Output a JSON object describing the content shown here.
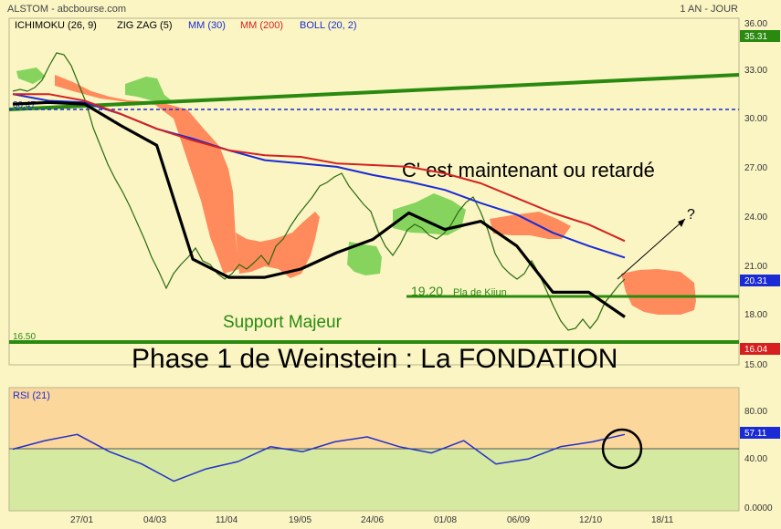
{
  "header": {
    "left": "ALSTOM - abcbourse.com",
    "right": "1 AN - JOUR"
  },
  "legend": [
    {
      "label": "ICHIMOKU (26, 9)",
      "color": "#000000"
    },
    {
      "label": "ZIG ZAG (5)",
      "color": "#000000"
    },
    {
      "label": "MM (30)",
      "color": "#1a2bd6"
    },
    {
      "label": "MM (200)",
      "color": "#d62020"
    },
    {
      "label": "BOLL (20, 2)",
      "color": "#1a2bd6"
    }
  ],
  "colors": {
    "background": "#fbf5c4",
    "rsi_upper_zone": "#fbd79b",
    "rsi_lower_zone": "#d5e9a1",
    "cloud_bearish": "#ff8a5c",
    "cloud_bullish": "#86d45e",
    "support": "#2a8a10",
    "mm30": "#1a2bd6",
    "mm200": "#d62020",
    "rsi": "#2230c8"
  },
  "chart_data": [
    {
      "type": "line",
      "panel": "price",
      "yaxis_ticks": [
        "36.00",
        "33.00",
        "30.00",
        "27.00",
        "24.00",
        "21.00",
        "18.00",
        "15.00"
      ],
      "ylim": [
        15,
        36
      ],
      "x_ticks": [
        "27/01",
        "04/03",
        "11/04",
        "19/05",
        "24/06",
        "01/08",
        "06/09",
        "12/10",
        "18/11"
      ],
      "price_badges": [
        {
          "value": "35.31",
          "color": "#2a8a10"
        },
        {
          "value": "20.31",
          "color": "#1a2bd6"
        },
        {
          "value": "16.04",
          "color": "#d62020"
        }
      ],
      "levels": [
        {
          "label": "16.50",
          "value": 16.5
        },
        {
          "label": "19.20",
          "value": 19.2
        },
        {
          "label": "30.47",
          "value": 30.5
        }
      ],
      "series": [
        {
          "name": "MM (30)",
          "values": [
            31.4,
            31.0,
            30.9,
            30.2,
            29.3,
            28.7,
            28.0,
            27.4,
            27.2,
            27.0,
            26.5,
            26.1,
            25.6,
            24.8,
            24.1,
            23.0,
            22.2,
            21.5
          ]
        },
        {
          "name": "MM (200)",
          "values": [
            31.4,
            31.4,
            31.0,
            30.2,
            29.3,
            28.6,
            28.0,
            27.7,
            27.6,
            27.2,
            27.1,
            27.0,
            26.6,
            26.0,
            25.1,
            24.2,
            23.5,
            22.5
          ]
        },
        {
          "name": "ICHIMOKU (26, 9)",
          "values": [
            30.8,
            30.9,
            30.8,
            29.5,
            28.3,
            21.4,
            20.3,
            20.3,
            20.8,
            21.8,
            22.6,
            24.2,
            23.2,
            23.7,
            22.2,
            19.4,
            19.4,
            17.9
          ]
        }
      ],
      "annotations": [
        {
          "text": "C' est maintenant ou retardé"
        },
        {
          "text": "?"
        },
        {
          "text": "Support Majeur"
        },
        {
          "text": "Pla de Kijun"
        },
        {
          "text": "Phase 1 de Weinstein : La FONDATION"
        }
      ]
    },
    {
      "type": "line",
      "panel": "rsi",
      "title": "RSI (21)",
      "yaxis_ticks": [
        "80.00",
        "57.11",
        "40.00",
        "0.0000"
      ],
      "ylim": [
        0,
        100
      ],
      "reference_level": 50,
      "series": [
        {
          "name": "RSI (21)",
          "values": [
            50,
            57,
            62,
            48,
            38,
            24,
            34,
            40,
            52,
            48,
            56,
            60,
            52,
            47,
            57,
            38,
            42,
            52,
            56,
            62
          ]
        }
      ]
    }
  ]
}
